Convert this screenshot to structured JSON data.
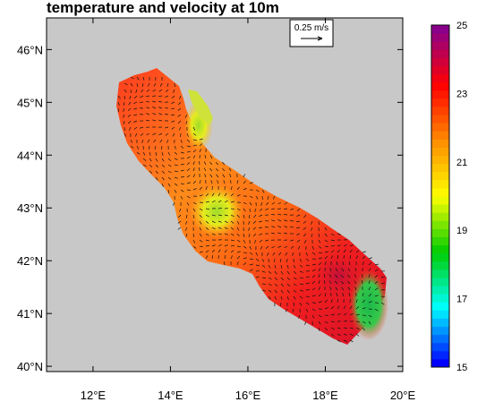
{
  "title": "temperature and velocity at 10m",
  "map": {
    "lon_range": [
      10.8,
      20.0
    ],
    "lat_range": [
      39.9,
      46.6
    ],
    "lon_ticks": [
      12,
      14,
      16,
      18,
      20
    ],
    "lat_ticks": [
      40,
      41,
      42,
      43,
      44,
      45,
      46
    ],
    "lon_tick_labels": [
      "12°E",
      "14°E",
      "16°E",
      "18°E",
      "20°E"
    ],
    "lat_tick_labels": [
      "40°N",
      "41°N",
      "42°N",
      "43°N",
      "44°N",
      "45°N",
      "46°N"
    ],
    "land_color": "#c8c8c8",
    "sea_background_color": "#ffffff",
    "domain": "Adriatic Sea"
  },
  "reference_vector": {
    "label": "0.25 m/s"
  },
  "colorbar": {
    "min": 15,
    "max": 25,
    "labels": [
      "25",
      "23",
      "21",
      "19",
      "17",
      "15"
    ],
    "colors": [
      "#0000ff",
      "#00ffff",
      "#00cc00",
      "#ffff00",
      "#ff8c00",
      "#ff0000",
      "#8b008b"
    ]
  },
  "chart_data": {
    "type": "heatmap",
    "title": "temperature and velocity at 10m",
    "variable": "temperature",
    "value_range": [
      15,
      25
    ],
    "x_axis": "longitude",
    "y_axis": "latitude",
    "grid": false,
    "legend_placement": "right",
    "vector_reference": "0.25 m/s"
  }
}
